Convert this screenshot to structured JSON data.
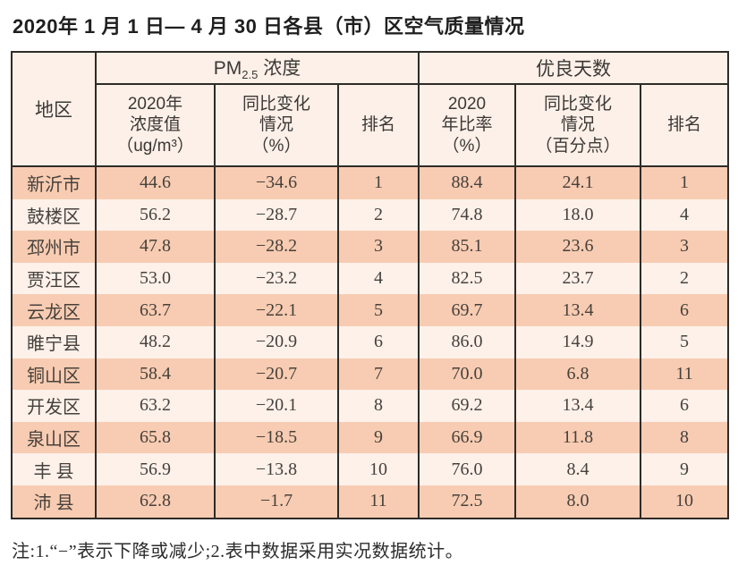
{
  "page": {
    "title": "2020年 1 月 1 日— 4 月 30 日各县（市）区空气质量情况",
    "note": "注:1.“−”表示下降或减少;2.表中数据采用实况数据统计。"
  },
  "table": {
    "region_header": "地区",
    "pm_group": {
      "prefix": "PM",
      "sub": "2.5",
      "suffix": " 浓度"
    },
    "good_days_group": "优良天数",
    "sub_headers": {
      "pm_value": "2020年\n浓度值\n（ug/m³）",
      "pm_change": "同比变化\n情况\n（%）",
      "pm_rank": "排名",
      "ratio": "2020\n年比率\n（%）",
      "ratio_change": "同比变化\n情况\n（百分点）",
      "ratio_rank": "排名"
    },
    "row_keys": [
      "region",
      "pm_value",
      "pm_change",
      "pm_rank",
      "ratio",
      "ratio_change",
      "ratio_rank"
    ],
    "rows": [
      {
        "region": "新沂市",
        "pm_value": "44.6",
        "pm_change": "−34.6",
        "pm_rank": "1",
        "ratio": "88.4",
        "ratio_change": "24.1",
        "ratio_rank": "1"
      },
      {
        "region": "鼓楼区",
        "pm_value": "56.2",
        "pm_change": "−28.7",
        "pm_rank": "2",
        "ratio": "74.8",
        "ratio_change": "18.0",
        "ratio_rank": "4"
      },
      {
        "region": "邳州市",
        "pm_value": "47.8",
        "pm_change": "−28.2",
        "pm_rank": "3",
        "ratio": "85.1",
        "ratio_change": "23.6",
        "ratio_rank": "3"
      },
      {
        "region": "贾汪区",
        "pm_value": "53.0",
        "pm_change": "−23.2",
        "pm_rank": "4",
        "ratio": "82.5",
        "ratio_change": "23.7",
        "ratio_rank": "2"
      },
      {
        "region": "云龙区",
        "pm_value": "63.7",
        "pm_change": "−22.1",
        "pm_rank": "5",
        "ratio": "69.7",
        "ratio_change": "13.4",
        "ratio_rank": "6"
      },
      {
        "region": "睢宁县",
        "pm_value": "48.2",
        "pm_change": "−20.9",
        "pm_rank": "6",
        "ratio": "86.0",
        "ratio_change": "14.9",
        "ratio_rank": "5"
      },
      {
        "region": "铜山区",
        "pm_value": "58.4",
        "pm_change": "−20.7",
        "pm_rank": "7",
        "ratio": "70.0",
        "ratio_change": "6.8",
        "ratio_rank": "11"
      },
      {
        "region": "开发区",
        "pm_value": "63.2",
        "pm_change": "−20.1",
        "pm_rank": "8",
        "ratio": "69.2",
        "ratio_change": "13.4",
        "ratio_rank": "6"
      },
      {
        "region": "泉山区",
        "pm_value": "65.8",
        "pm_change": "−18.5",
        "pm_rank": "9",
        "ratio": "66.9",
        "ratio_change": "11.8",
        "ratio_rank": "8"
      },
      {
        "region": "丰 县",
        "pm_value": "56.9",
        "pm_change": "−13.8",
        "pm_rank": "10",
        "ratio": "76.0",
        "ratio_change": "8.4",
        "ratio_rank": "9"
      },
      {
        "region": "沛 县",
        "pm_value": "62.8",
        "pm_change": "−1.7",
        "pm_rank": "11",
        "ratio": "72.5",
        "ratio_change": "8.0",
        "ratio_rank": "10"
      }
    ],
    "colors": {
      "row_odd": "#f8ccb2",
      "row_even": "#fdf1ea",
      "header_bg": "#fdf0e8",
      "border": "#2e2b28"
    }
  }
}
